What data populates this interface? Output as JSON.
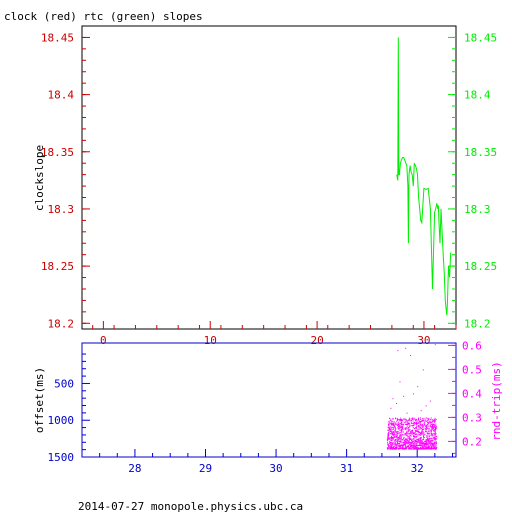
{
  "title": "clock (red) rtc (green) slopes",
  "footer": "2014-07-27 monopole.physics.ubc.ca",
  "colors": {
    "red": "#cc0000",
    "green": "#00ee00",
    "blue": "#0000cc",
    "magenta": "#ff00ff",
    "black": "#000000"
  },
  "chart_data": [
    {
      "type": "line",
      "ylabel": "clockslope",
      "x_ticks": [
        "0",
        "10",
        "20",
        "30"
      ],
      "xlim": [
        -2,
        33
      ],
      "y_ticks_left": [
        "18.45",
        "18.4",
        "18.35",
        "18.3",
        "18.25",
        "18.2"
      ],
      "y_ticks_right": [
        "18.45",
        "18.4",
        "18.35",
        "18.3",
        "18.25",
        "18.2"
      ],
      "ylim": [
        18.195,
        18.46
      ],
      "series": [
        {
          "color": "#00ee00",
          "x": [
            27.45,
            27.55,
            27.6,
            27.65,
            27.7,
            27.8,
            27.9,
            28.0,
            28.1,
            28.2,
            28.3,
            28.4,
            28.5,
            28.55,
            28.6,
            28.7,
            28.8,
            28.9,
            29.0,
            29.1,
            29.2,
            29.3,
            29.4,
            29.5,
            29.6,
            29.7,
            29.8,
            30.0,
            30.2,
            30.4,
            30.6,
            30.8,
            31.0,
            31.1,
            31.2,
            31.25,
            31.3,
            31.35,
            31.4,
            31.5,
            31.6,
            31.7,
            31.8,
            31.9,
            32.0,
            32.1,
            32.15,
            32.2,
            32.3,
            32.4,
            32.5
          ],
          "y": [
            18.33,
            18.325,
            18.45,
            18.33,
            18.33,
            18.34,
            18.343,
            18.345,
            18.345,
            18.343,
            18.34,
            18.338,
            18.32,
            18.27,
            18.33,
            18.338,
            18.332,
            18.33,
            18.32,
            18.34,
            18.338,
            18.335,
            18.33,
            18.31,
            18.3,
            18.29,
            18.288,
            18.318,
            18.317,
            18.318,
            18.3,
            18.23,
            18.297,
            18.3,
            18.305,
            18.303,
            18.3,
            18.303,
            18.29,
            18.27,
            18.3,
            18.28,
            18.26,
            18.245,
            18.22,
            18.21,
            18.207,
            18.22,
            18.25,
            18.24,
            18.262
          ]
        }
      ]
    },
    {
      "type": "scatter",
      "ylabel": "offset(ms)",
      "y2label": "rnd-trip(ms)",
      "x_ticks": [
        "28",
        "29",
        "30",
        "31",
        "32"
      ],
      "xlim": [
        27.25,
        32.55
      ],
      "y_ticks_left": [
        "500",
        "1000",
        "1500"
      ],
      "ylim_left": [
        -50,
        1500
      ],
      "y_ticks_right": [
        "0.2",
        "0.3",
        "0.4",
        "0.5",
        "0.6"
      ],
      "ylim_right": [
        0.135,
        0.61
      ],
      "series": [
        {
          "color": "#ff00ff",
          "x_range": [
            31.57,
            32.27
          ],
          "y_band_low": 0.17,
          "y_band_high": 0.3,
          "outliers": [
            [
              31.72,
              0.58
            ],
            [
              31.83,
              0.59
            ],
            [
              31.9,
              0.56
            ],
            [
              31.75,
              0.45
            ],
            [
              32.08,
              0.5
            ],
            [
              32.25,
              0.62
            ],
            [
              31.65,
              0.38
            ],
            [
              32.18,
              0.37
            ],
            [
              31.94,
              0.4
            ],
            [
              32.0,
              0.43
            ],
            [
              31.62,
              0.34
            ],
            [
              32.12,
              0.35
            ],
            [
              31.7,
              0.36
            ],
            [
              31.85,
              0.32
            ],
            [
              32.05,
              0.33
            ],
            [
              31.8,
              0.39
            ]
          ]
        }
      ]
    }
  ]
}
